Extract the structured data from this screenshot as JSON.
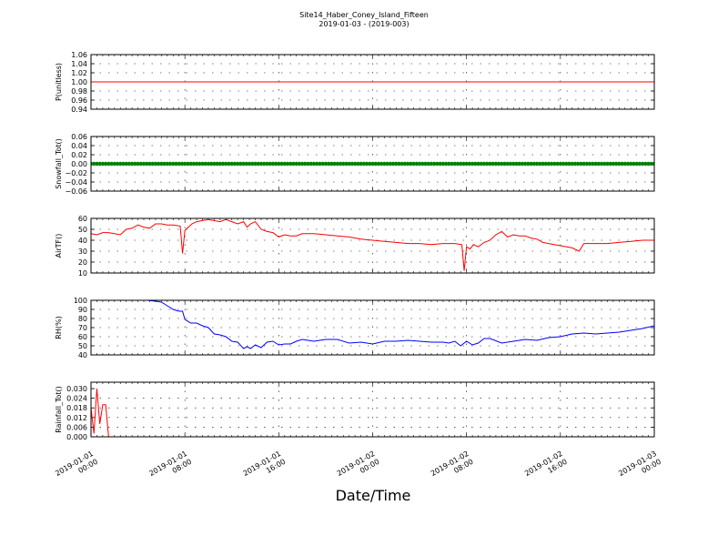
{
  "figure": {
    "title_line1": "Site14_Haber_Coney_Island_Fifteen",
    "title_line2": "2019-01-03 - (2019-003)",
    "xlabel": "Date/Time"
  },
  "chart_data": [
    {
      "type": "line",
      "ylabel": "P(unitless)",
      "ylim": [
        0.94,
        1.06
      ],
      "yticks": [
        0.94,
        0.96,
        0.98,
        1.0,
        1.02,
        1.04,
        1.06
      ],
      "ytick_labels": [
        "0.94",
        "0.96",
        "0.98",
        "1.00",
        "1.02",
        "1.04",
        "1.06"
      ],
      "xlim": [
        0,
        48
      ],
      "grid": true,
      "series": [
        {
          "color": "#ff0000",
          "style": "line",
          "x": [
            0,
            48
          ],
          "y": [
            1.0,
            1.0
          ]
        }
      ]
    },
    {
      "type": "line",
      "ylabel": "Snowfall_Tot()",
      "ylim": [
        -0.06,
        0.06
      ],
      "yticks": [
        -0.06,
        -0.04,
        -0.02,
        0.0,
        0.02,
        0.04,
        0.06
      ],
      "ytick_labels": [
        "−0.06",
        "−0.04",
        "−0.02",
        "0.00",
        "0.02",
        "0.04",
        "0.06"
      ],
      "xlim": [
        0,
        48
      ],
      "grid": true,
      "series": [
        {
          "color": "#008000",
          "style": "markers",
          "x": [
            0,
            48
          ],
          "y": [
            0,
            0
          ],
          "step": 0.25
        }
      ]
    },
    {
      "type": "line",
      "ylabel": "AirTF()",
      "ylim": [
        10,
        60
      ],
      "yticks": [
        10,
        20,
        30,
        40,
        50,
        60
      ],
      "ytick_labels": [
        "10",
        "20",
        "30",
        "40",
        "50",
        "60"
      ],
      "xlim": [
        0,
        48
      ],
      "grid": true,
      "series": [
        {
          "color": "#ff0000",
          "style": "line",
          "x": [
            0,
            0.5,
            1,
            1.5,
            2,
            2.5,
            3,
            3.5,
            4,
            4.5,
            5,
            5.5,
            6,
            6.5,
            7,
            7.6,
            7.8,
            8.0,
            8.3,
            8.6,
            9,
            9.5,
            10,
            11,
            11.5,
            12,
            12.5,
            13,
            13.3,
            13.6,
            14,
            14.5,
            15,
            15.5,
            16,
            16.5,
            17,
            17.5,
            18,
            19,
            20,
            21,
            22,
            23,
            24,
            25,
            26,
            27,
            28,
            29,
            30,
            31,
            31.6,
            31.8,
            32.0,
            32.3,
            32.6,
            33,
            33.5,
            34,
            34.5,
            35,
            35.5,
            36,
            36.5,
            37,
            37.5,
            38,
            38.5,
            39,
            40,
            41,
            41.6,
            42,
            43,
            44,
            45,
            46,
            47,
            48
          ],
          "y": [
            46,
            45,
            47,
            47,
            46,
            45,
            50,
            51,
            54,
            52,
            51,
            55,
            55,
            54,
            54,
            53,
            28,
            49,
            52,
            55,
            57,
            58,
            59,
            57,
            59,
            57,
            55,
            57,
            52,
            55,
            57,
            50,
            48,
            47,
            43,
            45,
            44,
            44,
            46,
            46,
            45,
            44,
            43,
            41,
            40,
            39,
            38,
            37,
            37,
            36,
            37,
            37,
            36,
            12,
            34,
            32,
            36,
            34,
            38,
            40,
            45,
            48,
            43,
            45,
            44,
            44,
            42,
            41,
            38,
            37,
            35,
            33,
            30,
            37,
            37,
            37,
            38,
            39,
            40,
            40
          ]
        }
      ]
    },
    {
      "type": "line",
      "ylabel": "RH(%)",
      "ylim": [
        40,
        100
      ],
      "yticks": [
        40,
        50,
        60,
        70,
        80,
        90,
        100
      ],
      "ytick_labels": [
        "40",
        "50",
        "60",
        "70",
        "80",
        "90",
        "100"
      ],
      "xlim": [
        0,
        48
      ],
      "grid": true,
      "series": [
        {
          "color": "#0000ff",
          "style": "line",
          "x": [
            4.8,
            5.5,
            6,
            6.5,
            7,
            7.5,
            7.8,
            8,
            8.5,
            9,
            9.5,
            10,
            10.5,
            11,
            11.5,
            12,
            12.5,
            13,
            13.3,
            13.6,
            14,
            14.5,
            15,
            15.5,
            16,
            16.5,
            17,
            17.5,
            18,
            18.5,
            19,
            19.5,
            20,
            21,
            22,
            23,
            24,
            25,
            26,
            27,
            28,
            29,
            30,
            30.5,
            31,
            31.5,
            32,
            32.5,
            33,
            33.5,
            34,
            35,
            36,
            37,
            38,
            39,
            40,
            41,
            42,
            43,
            44,
            45,
            46,
            47,
            48
          ],
          "y": [
            100,
            99,
            98,
            94,
            90,
            88,
            88,
            79,
            75,
            75,
            72,
            70,
            63,
            62,
            60,
            55,
            54,
            47,
            49,
            47,
            51,
            48,
            54,
            55,
            51,
            52,
            52,
            55,
            57,
            56,
            55,
            56,
            57,
            57,
            53,
            54,
            52,
            55,
            55,
            56,
            55,
            54,
            54,
            53,
            55,
            50,
            55,
            51,
            53,
            58,
            58,
            53,
            55,
            57,
            56,
            59,
            60,
            63,
            64,
            63,
            64,
            65,
            67,
            69,
            72
          ]
        }
      ]
    },
    {
      "type": "line",
      "ylabel": "Rainfall_Tot()",
      "ylim": [
        0,
        0.034
      ],
      "yticks": [
        0.0,
        0.006,
        0.012,
        0.018,
        0.024,
        0.03
      ],
      "ytick_labels": [
        "0.000",
        "0.006",
        "0.012",
        "0.018",
        "0.024",
        "0.030"
      ],
      "xlim": [
        0,
        48
      ],
      "grid": true,
      "xticks": [
        0,
        8,
        16,
        24,
        32,
        40,
        48
      ],
      "xtick_labels": [
        [
          "2019-01-01",
          "00:00"
        ],
        [
          "2019-01-01",
          "08:00"
        ],
        [
          "2019-01-01",
          "16:00"
        ],
        [
          "2019-01-02",
          "00:00"
        ],
        [
          "2019-01-02",
          "08:00"
        ],
        [
          "2019-01-02",
          "16:00"
        ],
        [
          "2019-01-03",
          "00:00"
        ]
      ],
      "series": [
        {
          "color": "#ff0000",
          "style": "line",
          "x": [
            0,
            0.25,
            0.5,
            0.75,
            1.0,
            1.25,
            1.5,
            1.75,
            2.0,
            48
          ],
          "y": [
            0.018,
            0.002,
            0.03,
            0.008,
            0.02,
            0.02,
            0.0,
            0.0,
            0.0,
            0.0
          ]
        }
      ]
    }
  ]
}
